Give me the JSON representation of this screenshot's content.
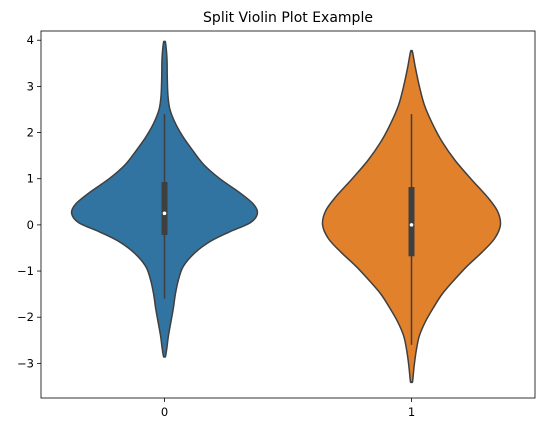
{
  "chart_data": {
    "type": "violin",
    "title": "Split Violin Plot Example",
    "xlabel": "",
    "ylabel": "",
    "categories": [
      "0",
      "1"
    ],
    "ylim": [
      -3.75,
      4.2
    ],
    "yticks": [
      -3,
      -2,
      -1,
      0,
      1,
      2,
      3,
      4
    ],
    "ytick_labels": [
      "−3",
      "−2",
      "−1",
      "0",
      "1",
      "2",
      "3",
      "4"
    ],
    "grid": false,
    "legend": "none",
    "series": [
      {
        "category": "0",
        "color": "#3274a1",
        "min": -2.85,
        "max": 3.95,
        "q1": -0.22,
        "median": 0.25,
        "q3": 0.93,
        "whisker_low": -1.6,
        "whisker_high": 2.4,
        "profile": [
          [
            3.95,
            0.01
          ],
          [
            3.6,
            0.025
          ],
          [
            3.2,
            0.028
          ],
          [
            2.8,
            0.035
          ],
          [
            2.5,
            0.055
          ],
          [
            2.2,
            0.11
          ],
          [
            1.9,
            0.19
          ],
          [
            1.6,
            0.29
          ],
          [
            1.3,
            0.4
          ],
          [
            1.0,
            0.56
          ],
          [
            0.7,
            0.76
          ],
          [
            0.45,
            0.9
          ],
          [
            0.25,
            0.94
          ],
          [
            0.05,
            0.87
          ],
          [
            -0.15,
            0.66
          ],
          [
            -0.35,
            0.47
          ],
          [
            -0.6,
            0.31
          ],
          [
            -0.9,
            0.19
          ],
          [
            -1.2,
            0.14
          ],
          [
            -1.5,
            0.11
          ],
          [
            -1.8,
            0.09
          ],
          [
            -2.1,
            0.065
          ],
          [
            -2.4,
            0.04
          ],
          [
            -2.65,
            0.025
          ],
          [
            -2.85,
            0.01
          ]
        ]
      },
      {
        "category": "1",
        "color": "#e1812c",
        "min": -3.4,
        "max": 3.75,
        "q1": -0.68,
        "median": 0.0,
        "q3": 0.82,
        "whisker_low": -2.6,
        "whisker_high": 2.4,
        "profile": [
          [
            3.75,
            0.01
          ],
          [
            3.4,
            0.04
          ],
          [
            3.0,
            0.08
          ],
          [
            2.6,
            0.13
          ],
          [
            2.2,
            0.21
          ],
          [
            1.8,
            0.31
          ],
          [
            1.4,
            0.44
          ],
          [
            1.0,
            0.6
          ],
          [
            0.6,
            0.77
          ],
          [
            0.3,
            0.87
          ],
          [
            0.0,
            0.9
          ],
          [
            -0.3,
            0.84
          ],
          [
            -0.6,
            0.71
          ],
          [
            -0.9,
            0.56
          ],
          [
            -1.2,
            0.43
          ],
          [
            -1.5,
            0.31
          ],
          [
            -1.8,
            0.22
          ],
          [
            -2.1,
            0.14
          ],
          [
            -2.4,
            0.08
          ],
          [
            -2.7,
            0.05
          ],
          [
            -3.0,
            0.03
          ],
          [
            -3.2,
            0.02
          ],
          [
            -3.4,
            0.01
          ]
        ]
      }
    ]
  }
}
